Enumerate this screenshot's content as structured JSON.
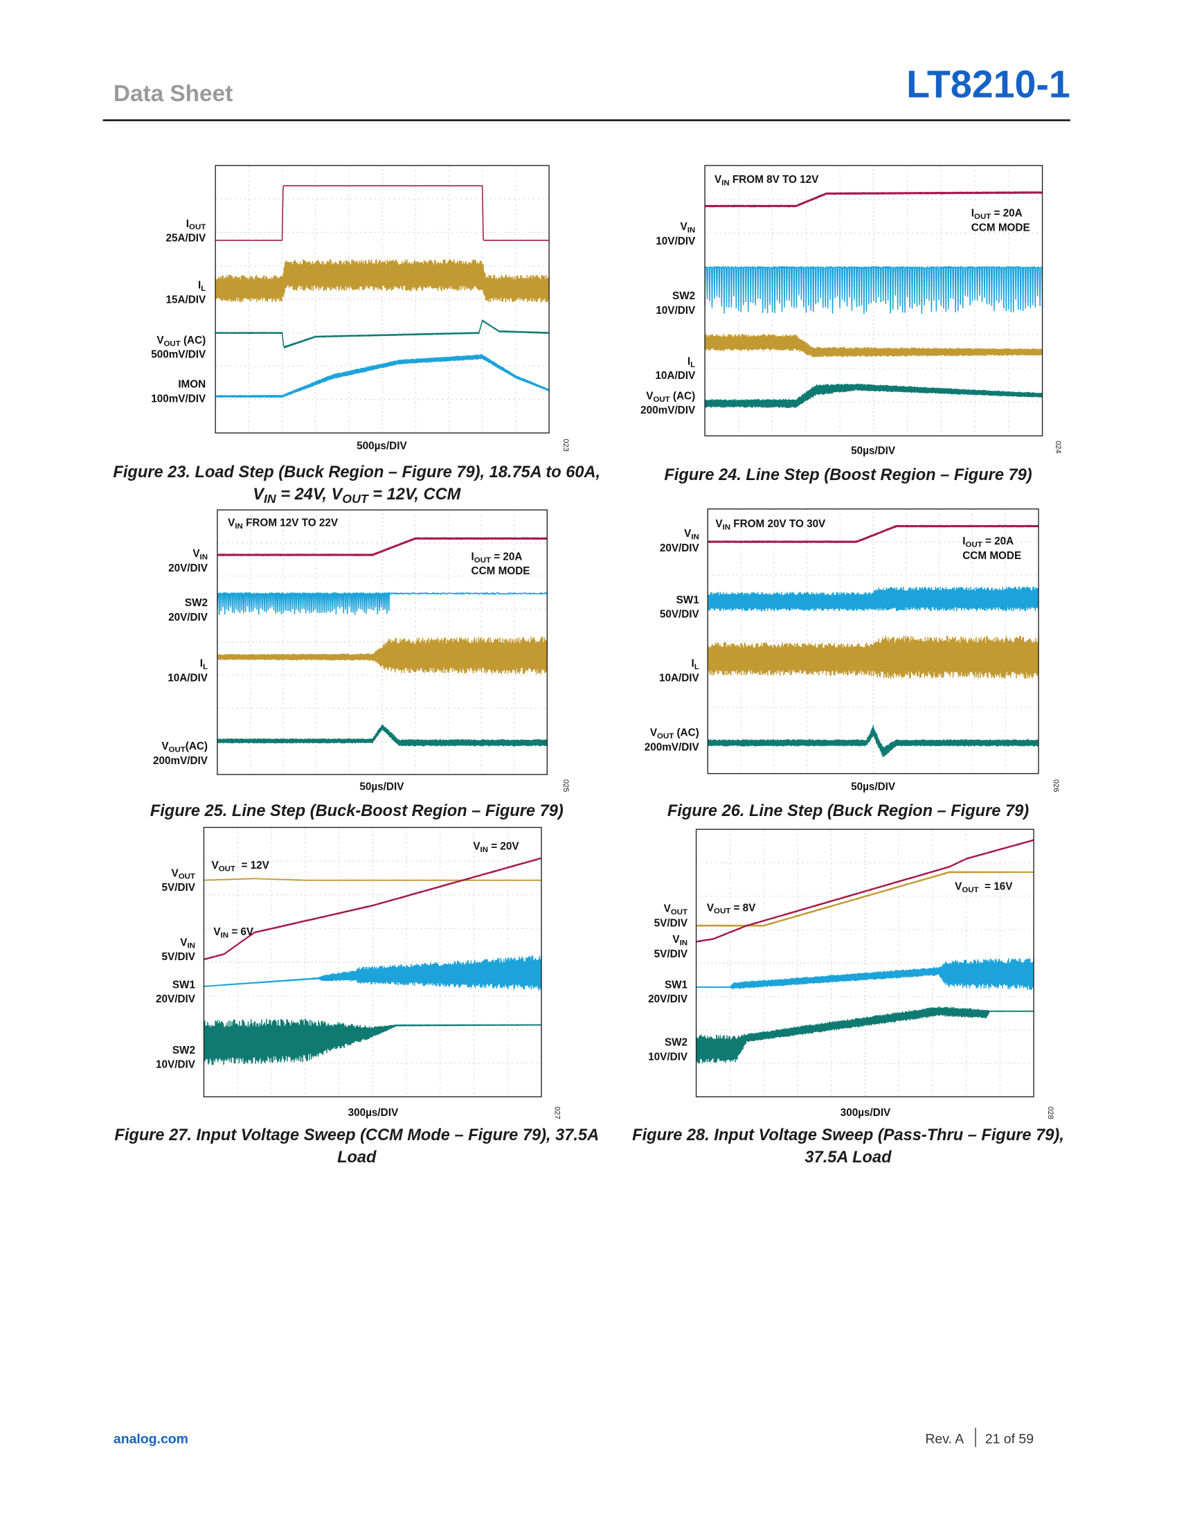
{
  "header": {
    "section": "Data Sheet",
    "part_number": "LT8210-1"
  },
  "figures": [
    {
      "number": "023",
      "timebase": "500µs/DIV",
      "channels": [
        {
          "name": [
            "I",
            {
              "sub": "OUT"
            }
          ],
          "scale": "25A/DIV"
        },
        {
          "name": [
            "I",
            {
              "sub": "L"
            }
          ],
          "scale": "15A/DIV"
        },
        {
          "name": [
            "V",
            {
              "sub": "OUT"
            },
            " (AC)"
          ],
          "scale": "500mV/DIV"
        },
        {
          "name": [
            "IMON"
          ],
          "scale": "100mV/DIV"
        }
      ],
      "annotations": [],
      "caption": [
        [
          "Figure 23. Load Step (Buck Region – Figure 79), 18.75A to 60A,"
        ],
        [
          "V",
          {
            "sub": "IN"
          },
          " = 24V, V",
          {
            "sub": "OUT"
          },
          " = 12V, CCM"
        ]
      ]
    },
    {
      "number": "024",
      "timebase": "50µs/DIV",
      "channels": [
        {
          "name": [
            "V",
            {
              "sub": "IN"
            }
          ],
          "scale": "10V/DIV"
        },
        {
          "name": [
            "SW2"
          ],
          "scale": "10V/DIV"
        },
        {
          "name": [
            "I",
            {
              "sub": "L"
            }
          ],
          "scale": "10A/DIV"
        },
        {
          "name": [
            "V",
            {
              "sub": "OUT"
            },
            " (AC)"
          ],
          "scale": "200mV/DIV"
        }
      ],
      "annotations": [
        [
          [
            "V",
            {
              "sub": "IN"
            },
            " FROM 8V TO 12V"
          ]
        ],
        [
          [
            "I",
            {
              "sub": "OUT"
            },
            " = 20A"
          ],
          [
            "CCM MODE"
          ]
        ]
      ],
      "caption": [
        [
          "Figure 24. Line Step (Boost Region – Figure 79)"
        ]
      ]
    },
    {
      "number": "025",
      "timebase": "50µs/DIV",
      "channels": [
        {
          "name": [
            "V",
            {
              "sub": "IN"
            }
          ],
          "scale": "20V/DIV"
        },
        {
          "name": [
            "SW2"
          ],
          "scale": "20V/DIV"
        },
        {
          "name": [
            "I",
            {
              "sub": "L"
            }
          ],
          "scale": "10A/DIV"
        },
        {
          "name": [
            "V",
            {
              "sub": "OUT"
            },
            "(AC)"
          ],
          "scale": "200mV/DIV"
        }
      ],
      "annotations": [
        [
          [
            "V",
            {
              "sub": "IN"
            },
            " FROM 12V TO 22V"
          ]
        ],
        [
          [
            "I",
            {
              "sub": "OUT"
            },
            " = 20A"
          ],
          [
            "CCM MODE"
          ]
        ]
      ],
      "caption": [
        [
          "Figure 25. Line Step (Buck-Boost Region – Figure 79)"
        ]
      ]
    },
    {
      "number": "026",
      "timebase": "50µs/DIV",
      "channels": [
        {
          "name": [
            "V",
            {
              "sub": "IN"
            }
          ],
          "scale": "20V/DIV"
        },
        {
          "name": [
            "SW1"
          ],
          "scale": "50V/DIV"
        },
        {
          "name": [
            "I",
            {
              "sub": "L"
            }
          ],
          "scale": "10A/DIV"
        },
        {
          "name": [
            "V",
            {
              "sub": "OUT"
            },
            " (AC)"
          ],
          "scale": "200mV/DIV"
        }
      ],
      "annotations": [
        [
          [
            "V",
            {
              "sub": "IN"
            },
            " FROM 20V TO 30V"
          ]
        ],
        [
          [
            "I",
            {
              "sub": "OUT"
            },
            " = 20A"
          ],
          [
            "CCM MODE"
          ]
        ]
      ],
      "caption": [
        [
          "Figure 26. Line Step (Buck Region – Figure 79)"
        ]
      ]
    },
    {
      "number": "027",
      "timebase": "300µs/DIV",
      "channels": [
        {
          "name": [
            "V",
            {
              "sub": "OUT"
            }
          ],
          "scale": "5V/DIV"
        },
        {
          "name": [
            "V",
            {
              "sub": "IN"
            }
          ],
          "scale": "5V/DIV"
        },
        {
          "name": [
            "SW1"
          ],
          "scale": "20V/DIV"
        },
        {
          "name": [
            "SW2"
          ],
          "scale": "10V/DIV"
        }
      ],
      "annotations": [
        [
          [
            "V",
            {
              "sub": "OUT"
            },
            "  = 12V"
          ]
        ],
        [
          [
            "V",
            {
              "sub": "IN"
            },
            " = 20V"
          ]
        ],
        [
          [
            "V",
            {
              "sub": "IN"
            },
            " = 6V"
          ]
        ]
      ],
      "caption": [
        [
          "Figure 27. Input Voltage Sweep (CCM Mode – Figure 79), 37.5A"
        ],
        [
          "Load"
        ]
      ]
    },
    {
      "number": "028",
      "timebase": "300µs/DIV",
      "channels": [
        {
          "name": [
            "V",
            {
              "sub": "OUT"
            }
          ],
          "scale": "5V/DIV"
        },
        {
          "name": [
            "V",
            {
              "sub": "IN"
            }
          ],
          "scale": "5V/DIV"
        },
        {
          "name": [
            "SW1"
          ],
          "scale": "20V/DIV"
        },
        {
          "name": [
            "SW2"
          ],
          "scale": "10V/DIV"
        }
      ],
      "annotations": [
        [
          [
            "V",
            {
              "sub": "OUT"
            },
            " = 8V"
          ]
        ],
        [
          [
            "V",
            {
              "sub": "OUT"
            },
            "  = 16V"
          ]
        ]
      ],
      "caption": [
        [
          "Figure 28. Input Voltage Sweep (Pass-Thru – Figure 79),"
        ],
        [
          "37.5A Load"
        ]
      ]
    }
  ],
  "footer": {
    "website": "analog.com",
    "revision": "Rev. A",
    "page": "21 of 59"
  }
}
